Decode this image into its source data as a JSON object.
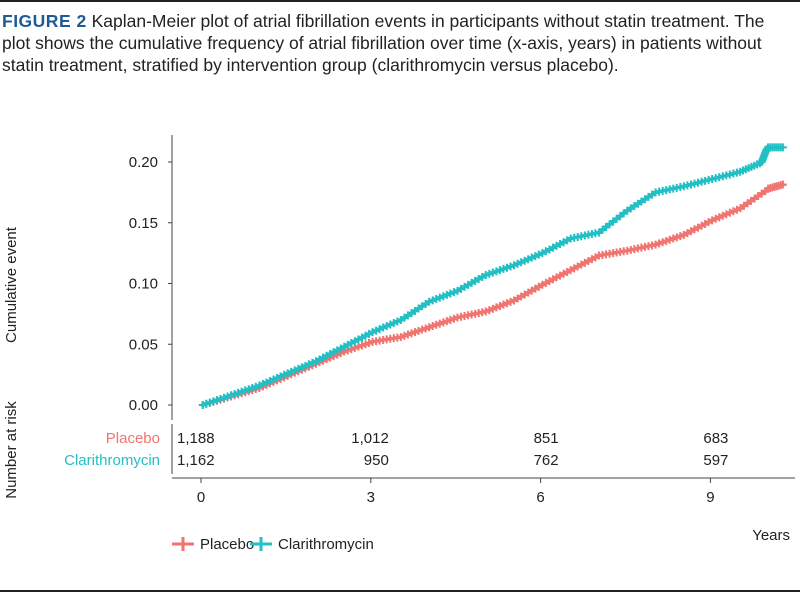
{
  "caption": {
    "label": "FIGURE 2",
    "text": " Kaplan-Meier plot of atrial fibrillation events in participants without statin treatment. The plot shows the cumulative frequency of atrial fibrillation over time (x-axis, years) in patients without statin treatment, stratified by intervention group (clarithromycin versus placebo)."
  },
  "chart_data": {
    "type": "line",
    "title": "",
    "xlabel": "Years",
    "ylabel": "Cumulative event",
    "risk_label": "Number at risk",
    "xlim": [
      0,
      10.4
    ],
    "ylim": [
      0,
      0.215
    ],
    "xticks": [
      0,
      3,
      6,
      9
    ],
    "yticks": [
      "0.00",
      "0.05",
      "0.10",
      "0.15",
      "0.20"
    ],
    "legend_position": "bottom-left",
    "series": [
      {
        "name": "Placebo",
        "color": "#f07470",
        "x": [
          0,
          0.5,
          1,
          1.5,
          2,
          2.5,
          3,
          3.5,
          4,
          4.5,
          5,
          5.5,
          6,
          6.5,
          7,
          7.5,
          8,
          8.5,
          9,
          9.5,
          10,
          10.3
        ],
        "y": [
          0,
          0.007,
          0.014,
          0.024,
          0.034,
          0.044,
          0.052,
          0.056,
          0.064,
          0.072,
          0.077,
          0.086,
          0.099,
          0.111,
          0.123,
          0.127,
          0.132,
          0.14,
          0.152,
          0.162,
          0.178,
          0.182
        ]
      },
      {
        "name": "Clarithromycin",
        "color": "#22bfc4",
        "x": [
          0,
          0.5,
          1,
          1.5,
          2,
          2.5,
          3,
          3.5,
          4,
          4.5,
          5,
          5.5,
          6,
          6.5,
          7,
          7.5,
          8,
          8.5,
          9,
          9.5,
          9.9,
          10.0,
          10.3
        ],
        "y": [
          0,
          0.008,
          0.016,
          0.026,
          0.036,
          0.048,
          0.06,
          0.07,
          0.085,
          0.094,
          0.107,
          0.115,
          0.125,
          0.137,
          0.142,
          0.16,
          0.175,
          0.18,
          0.186,
          0.192,
          0.2,
          0.212,
          0.212
        ]
      }
    ],
    "risk_table": {
      "times": [
        0,
        3,
        6,
        9
      ],
      "rows": [
        {
          "name": "Placebo",
          "values": [
            "1,188",
            "1,012",
            "851",
            "683"
          ]
        },
        {
          "name": "Clarithromycin",
          "values": [
            "1,162",
            "950",
            "762",
            "597"
          ]
        }
      ]
    }
  }
}
